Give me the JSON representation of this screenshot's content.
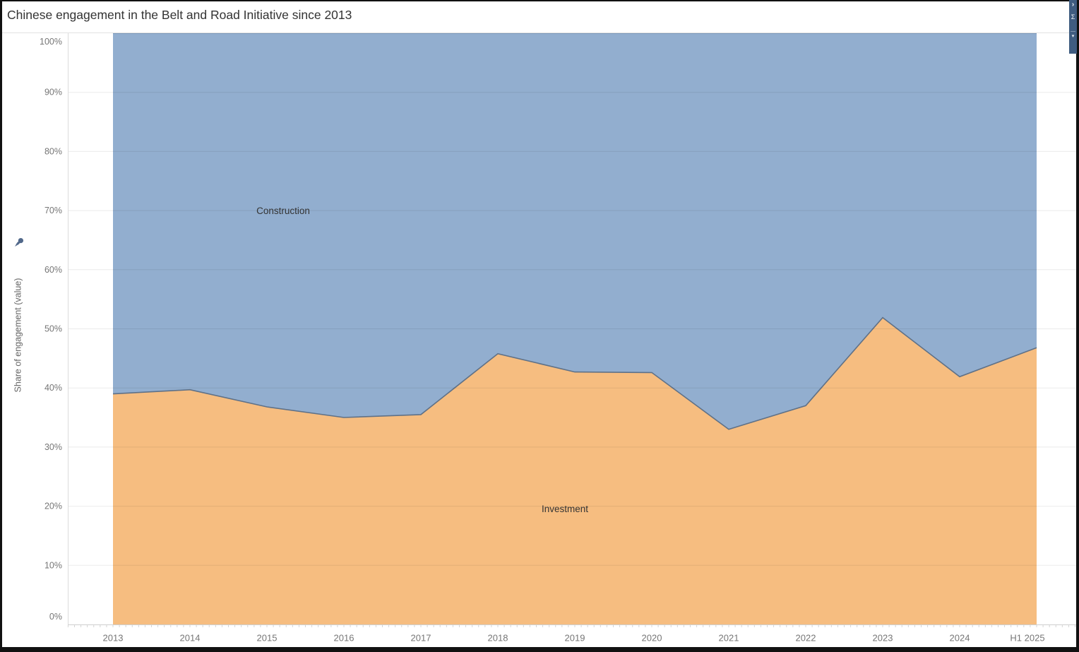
{
  "window": {
    "title": "Chinese engagement in the Belt and Road Initiative since 2013"
  },
  "side_strip": {
    "color": "#3f5c80",
    "chevron_right": "›",
    "sigma_glyph": "Σ",
    "caret_down": "▾"
  },
  "chart_data": {
    "type": "area",
    "subtype": "100%-stacked",
    "title": "Chinese engagement in the Belt and Road Initiative since 2013",
    "xlabel": "",
    "ylabel": "Share of engagement (value)",
    "ylim": [
      0,
      100
    ],
    "ytick_step": 10,
    "yticks": [
      "0%",
      "10%",
      "20%",
      "30%",
      "40%",
      "50%",
      "60%",
      "70%",
      "80%",
      "90%",
      "100%"
    ],
    "grid": true,
    "legend_position": "labels-inside-plot",
    "x": [
      "2013",
      "2014",
      "2015",
      "2016",
      "2017",
      "2018",
      "2019",
      "2020",
      "2021",
      "2022",
      "2023",
      "2024",
      "H1 2025"
    ],
    "series": [
      {
        "name": "Investment",
        "color": "#f6bd80",
        "values": [
          39.0,
          39.7,
          36.8,
          35.0,
          35.5,
          45.8,
          42.7,
          42.6,
          33.0,
          37.0,
          51.9,
          41.9,
          46.8
        ]
      },
      {
        "name": "Construction",
        "color": "#92aecf",
        "values": [
          61.0,
          60.3,
          63.2,
          65.0,
          64.5,
          54.2,
          57.3,
          57.4,
          67.0,
          63.0,
          48.1,
          58.1,
          53.2
        ]
      }
    ],
    "colors": {
      "boundary_stroke": "#5f7187",
      "gridline": "rgba(0,0,0,0.08)",
      "axis_line": "#cfcfcf",
      "tick_label": "#767676"
    }
  }
}
